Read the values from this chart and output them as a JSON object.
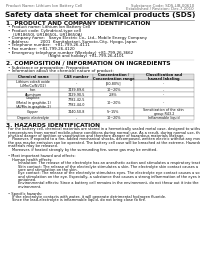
{
  "title": "Safety data sheet for chemical products (SDS)",
  "header_left": "Product Name: Lithium Ion Battery Cell",
  "header_right_1": "Substance Code: SDS-LIB-00610",
  "header_right_2": "Established / Revision: Dec.7,2010",
  "s1_heading": "1. PRODUCT AND COMPANY IDENTIFICATION",
  "s1_lines": [
    "• Product name: Lithium Ion Battery Cell",
    "• Product code: Cylindrical-type cell",
    "    (UR18650J, UR18650L, UR18650A)",
    "• Company name:   Sanyo Electric Co., Ltd., Mobile Energy Company",
    "• Address:         2001  Kamitaketani, Sumoto-City, Hyogo, Japan",
    "• Telephone number:   +81-799-26-4111",
    "• Fax number:  +81-799-26-4120",
    "• Emergency telephone number (Weekday) +81-799-26-3662",
    "                                (Night and holiday) +81-799-26-4101"
  ],
  "s2_heading": "2. COMPOSITION / INFORMATION ON INGREDIENTS",
  "s2_pre_lines": [
    "• Substance or preparation: Preparation",
    "• Information about the chemical nature of product:"
  ],
  "table_headers": [
    "Chemical name",
    "CAS number",
    "Concentration /\nConcentration range",
    "Classification and\nhazard labeling"
  ],
  "table_rows": [
    [
      "Lithium cobalt oxide\n(LiMn/Co/Ni/O2)",
      "-",
      "[60-80%]",
      "-"
    ],
    [
      "Iron",
      "7439-89-6",
      "10~20%",
      "-"
    ],
    [
      "Aluminum",
      "7429-90-5",
      "2-8%",
      "-"
    ],
    [
      "Graphite\n(Metal in graphite-1)\n(Al/Mn in graphite-2)",
      "7782-42-5\n7782-44-0",
      "10~20%",
      "-"
    ],
    [
      "Copper",
      "7440-50-8",
      "5~15%",
      "Sensitization of the skin\ngroup R43.2"
    ],
    [
      "Organic electrolyte",
      "-",
      "10~20%",
      "Inflammable liquid"
    ]
  ],
  "s3_heading": "3. HAZARDS IDENTIFICATION",
  "s3_lines": [
    "For the battery cell, chemical materials are stored in a hermetically sealed metal case, designed to withstand",
    "temperatures from normal mobile-phone conditions during normal use. As a result, during normal use, there is no",
    "physical danger of ignition or vaporization and therefore danger of hazardous materials leakage.",
    "   However, if exposed to a fire, added mechanical shocks, decomposed, written electric without any measures,",
    "the gas maybe emission can be operated. The battery cell case will be breached at the extreme. Hazardous",
    "materials may be released.",
    "   Moreover, if heated strongly by the surrounding fire, some gas may be emitted.",
    "",
    "• Most important hazard and effects:",
    "   Human health effects:",
    "      Inhalation: The release of the electrolyte has an anesthetic action and stimulates a respiratory tract.",
    "      Skin contact: The release of the electrolyte stimulates a skin. The electrolyte skin contact causes a",
    "      sore and stimulation on the skin.",
    "      Eye contact: The release of the electrolyte stimulates eyes. The electrolyte eye contact causes a sore",
    "      and stimulation on the eye. Especially, a substance that causes a strong inflammation of the eyes is",
    "      contained.",
    "      Environmental effects: Since a battery cell remains in the environment, do not throw out it into the",
    "      environment.",
    "",
    "• Specific hazards:",
    "   If the electrolyte contacts with water, it will generate detrimental hydrogen fluoride.",
    "   Since the lead-electrolyte is inflammable liquid, do not bring close to fire."
  ],
  "bg_color": "#ffffff",
  "text_color": "#111111",
  "gray_color": "#666666",
  "fs_hdr": 2.8,
  "fs_title": 5.2,
  "fs_heading": 4.2,
  "fs_body": 2.9,
  "fs_table": 2.6
}
